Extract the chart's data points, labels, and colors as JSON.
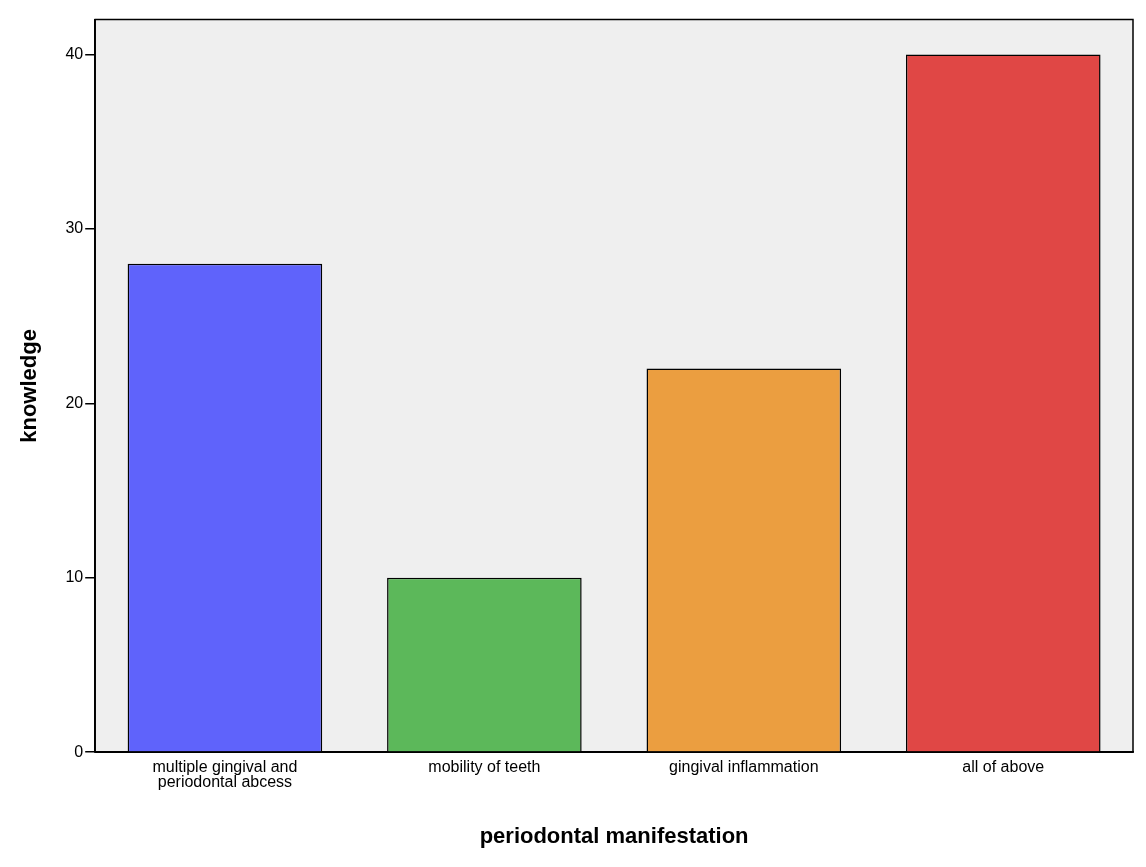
{
  "chart_data": {
    "type": "bar",
    "xlabel": "periodontal manifestation",
    "ylabel": "knowledge",
    "categories": [
      "multiple gingival and periodontal abcess",
      "mobility of teeth",
      "gingival inflammation",
      "all of above"
    ],
    "values": [
      28,
      10,
      22,
      40
    ],
    "colors": [
      "#5f63fb",
      "#5cb85a",
      "#eb9e40",
      "#e04745"
    ],
    "ylim": [
      0,
      42
    ],
    "yticks": [
      0,
      10,
      20,
      30,
      40
    ],
    "grid": false
  }
}
